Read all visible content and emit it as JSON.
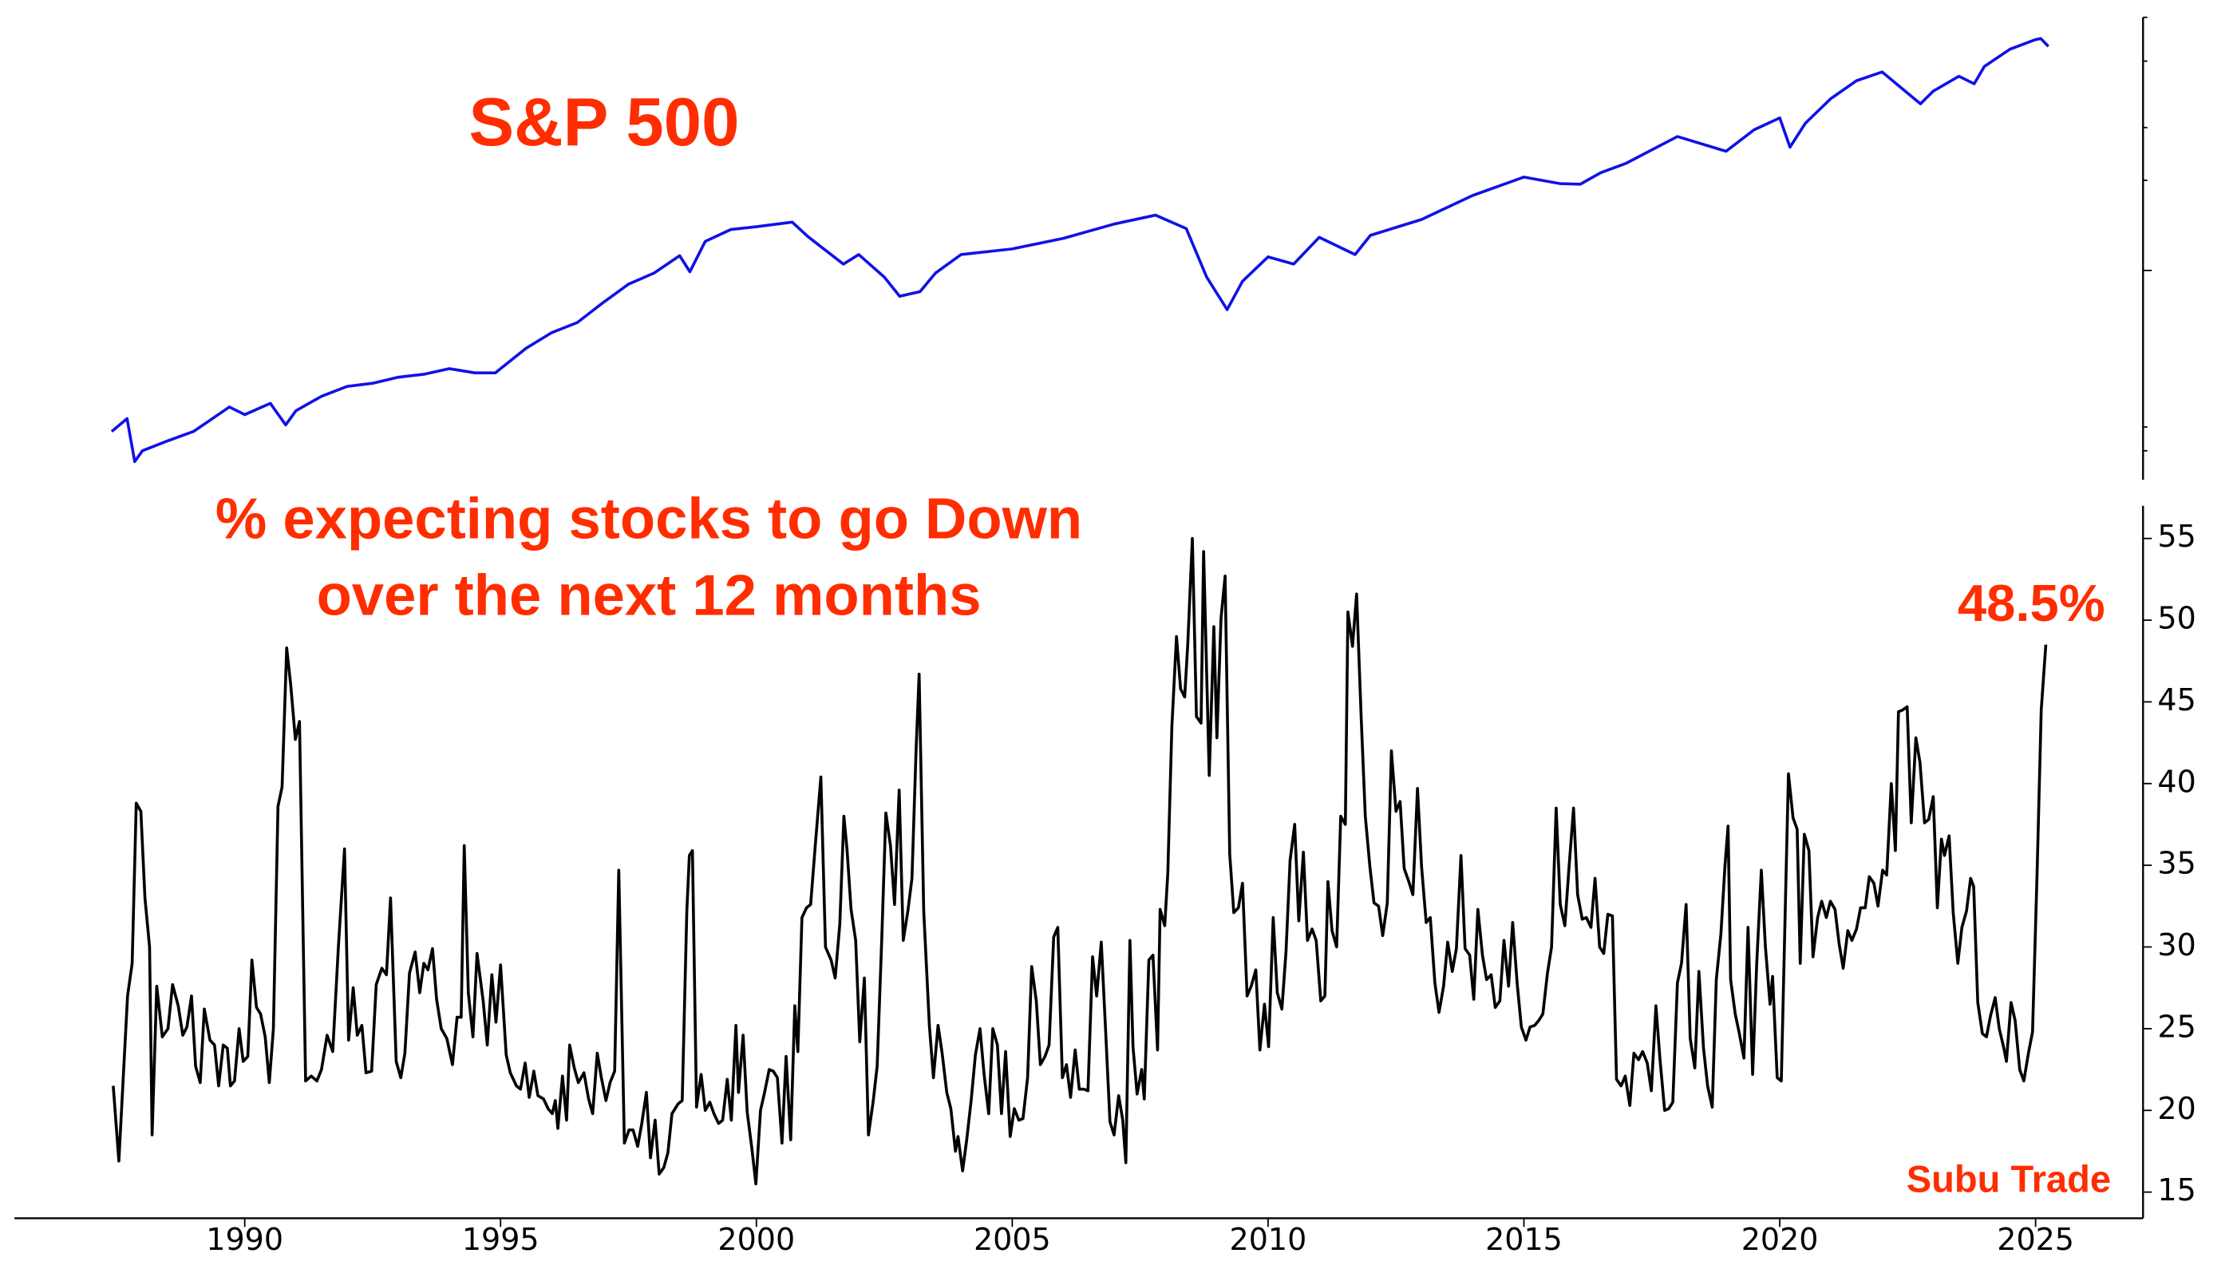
{
  "chart_data": [
    {
      "type": "line",
      "title": "S&P 500",
      "color": "#1111e6",
      "log_scale": true,
      "yticks_labeled": false,
      "xlim": [
        1985.5,
        2027.1
      ],
      "ylim": [
        200,
        7000
      ],
      "yticks": [
        250,
        300,
        1000,
        2000,
        3000,
        5000,
        7000
      ],
      "x": [
        1987.4,
        1987.7,
        1987.85,
        1988.0,
        1988.5,
        1989.0,
        1989.7,
        1990.0,
        1990.5,
        1990.8,
        1991.0,
        1991.5,
        1992.0,
        1992.5,
        1993.0,
        1993.5,
        1994.0,
        1994.5,
        1994.9,
        1995.0,
        1995.5,
        1996.0,
        1996.5,
        1997.0,
        1997.5,
        1998.0,
        1998.5,
        1998.7,
        1999.0,
        1999.5,
        2000.0,
        2000.7,
        2001.0,
        2001.7,
        2002.0,
        2002.5,
        2002.8,
        2003.2,
        2003.5,
        2004.0,
        2005.0,
        2006.0,
        2007.0,
        2007.8,
        2008.4,
        2008.8,
        2009.2,
        2009.5,
        2010.0,
        2010.5,
        2011.0,
        2011.7,
        2012.0,
        2013.0,
        2014.0,
        2015.0,
        2015.7,
        2016.1,
        2016.5,
        2017.0,
        2018.0,
        2018.95,
        2019.5,
        2020.0,
        2020.2,
        2020.5,
        2021.0,
        2021.5,
        2022.0,
        2022.75,
        2023.0,
        2023.5,
        2023.8,
        2024.0,
        2024.5,
        2025.0,
        2025.1,
        2025.25
      ],
      "values": [
        290,
        320,
        230,
        250,
        270,
        290,
        350,
        330,
        360,
        305,
        340,
        380,
        410,
        420,
        440,
        450,
        470,
        455,
        455,
        470,
        550,
        620,
        670,
        780,
        900,
        980,
        1120,
        990,
        1250,
        1370,
        1400,
        1450,
        1300,
        1050,
        1130,
        950,
        820,
        850,
        980,
        1130,
        1180,
        1280,
        1430,
        1530,
        1380,
        950,
        740,
        920,
        1110,
        1050,
        1290,
        1130,
        1310,
        1480,
        1780,
        2050,
        1950,
        1940,
        2120,
        2280,
        2800,
        2500,
        2950,
        3230,
        2580,
        3100,
        3750,
        4300,
        4600,
        3600,
        3970,
        4450,
        4200,
        4800,
        5480,
        5900,
        5950,
        5600
      ]
    },
    {
      "type": "line",
      "title": [
        "% expecting stocks to go Down",
        "over the next 12 months"
      ],
      "color": "#000000",
      "end_label": "48.5%",
      "xlim": [
        1985.5,
        2027.1
      ],
      "xticks": [
        1990,
        1995,
        2000,
        2005,
        2010,
        2015,
        2020,
        2025
      ],
      "ylim": [
        13.4,
        57
      ],
      "yticks": [
        15,
        20,
        25,
        30,
        35,
        40,
        45,
        50,
        55
      ],
      "x": [
        1987.43,
        1987.54,
        1987.71,
        1987.8,
        1987.88,
        1987.97,
        1988.05,
        1988.14,
        1988.19,
        1988.28,
        1988.39,
        1988.5,
        1988.59,
        1988.7,
        1988.79,
        1988.87,
        1988.96,
        1989.04,
        1989.13,
        1989.21,
        1989.32,
        1989.41,
        1989.49,
        1989.58,
        1989.66,
        1989.72,
        1989.8,
        1989.89,
        1989.97,
        1990.06,
        1990.14,
        1990.23,
        1990.31,
        1990.4,
        1990.48,
        1990.56,
        1990.65,
        1990.73,
        1990.82,
        1990.9,
        1990.99,
        1991.07,
        1991.19,
        1991.3,
        1991.41,
        1991.5,
        1991.61,
        1991.72,
        1991.83,
        1991.95,
        1992.03,
        1992.12,
        1992.2,
        1992.29,
        1992.37,
        1992.48,
        1992.57,
        1992.68,
        1992.77,
        1992.85,
        1992.96,
        1993.05,
        1993.13,
        1993.22,
        1993.33,
        1993.42,
        1993.5,
        1993.58,
        1993.67,
        1993.75,
        1993.84,
        1993.95,
        1994.06,
        1994.15,
        1994.23,
        1994.29,
        1994.37,
        1994.46,
        1994.54,
        1994.66,
        1994.74,
        1994.83,
        1994.91,
        1995.0,
        1995.11,
        1995.19,
        1995.31,
        1995.39,
        1995.48,
        1995.56,
        1995.65,
        1995.73,
        1995.84,
        1995.93,
        1996.01,
        1996.07,
        1996.12,
        1996.21,
        1996.29,
        1996.35,
        1996.44,
        1996.52,
        1996.63,
        1996.72,
        1996.8,
        1996.89,
        1996.97,
        1997.06,
        1997.14,
        1997.23,
        1997.31,
        1997.42,
        1997.51,
        1997.59,
        1997.68,
        1997.76,
        1997.85,
        1997.93,
        1998.02,
        1998.1,
        1998.19,
        1998.27,
        1998.35,
        1998.47,
        1998.55,
        1998.64,
        1998.69,
        1998.75,
        1998.83,
        1998.92,
        1999.0,
        1999.09,
        1999.17,
        1999.26,
        1999.34,
        1999.43,
        1999.51,
        1999.6,
        1999.65,
        1999.74,
        1999.82,
        1999.91,
        1999.99,
        2000.08,
        2000.16,
        2000.25,
        2000.33,
        2000.41,
        2000.5,
        2000.58,
        2000.67,
        2000.75,
        2000.81,
        2000.89,
        2000.98,
        2001.06,
        2001.15,
        2001.26,
        2001.35,
        2001.46,
        2001.54,
        2001.63,
        2001.71,
        2001.77,
        2001.85,
        2001.94,
        2002.02,
        2002.11,
        2002.19,
        2002.28,
        2002.36,
        2002.45,
        2002.53,
        2002.62,
        2002.7,
        2002.79,
        2002.87,
        2002.96,
        2003.04,
        2003.12,
        2003.18,
        2003.27,
        2003.38,
        2003.46,
        2003.55,
        2003.63,
        2003.72,
        2003.8,
        2003.89,
        2003.94,
        2004.03,
        2004.11,
        2004.2,
        2004.28,
        2004.37,
        2004.45,
        2004.54,
        2004.62,
        2004.71,
        2004.79,
        2004.87,
        2004.96,
        2005.04,
        2005.13,
        2005.21,
        2005.3,
        2005.38,
        2005.47,
        2005.55,
        2005.64,
        2005.72,
        2005.81,
        2005.89,
        2005.98,
        2006.06,
        2006.14,
        2006.23,
        2006.31,
        2006.4,
        2006.48,
        2006.57,
        2006.65,
        2006.74,
        2006.82,
        2006.91,
        2006.99,
        2007.08,
        2007.16,
        2007.22,
        2007.3,
        2007.36,
        2007.44,
        2007.53,
        2007.58,
        2007.67,
        2007.75,
        2007.84,
        2007.89,
        2007.98,
        2008.04,
        2008.12,
        2008.21,
        2008.29,
        2008.37,
        2008.43,
        2008.52,
        2008.6,
        2008.69,
        2008.74,
        2008.85,
        2008.94,
        2009.0,
        2009.08,
        2009.16,
        2009.25,
        2009.33,
        2009.42,
        2009.5,
        2009.59,
        2009.67,
        2009.76,
        2009.84,
        2009.93,
        2010.01,
        2010.1,
        2010.18,
        2010.27,
        2010.35,
        2010.43,
        2010.52,
        2010.6,
        2010.69,
        2010.77,
        2010.86,
        2010.94,
        2011.03,
        2011.11,
        2011.17,
        2011.25,
        2011.34,
        2011.42,
        2011.51,
        2011.56,
        2011.65,
        2011.73,
        2011.82,
        2011.9,
        2011.99,
        2012.07,
        2012.16,
        2012.24,
        2012.33,
        2012.41,
        2012.5,
        2012.58,
        2012.66,
        2012.75,
        2012.83,
        2012.92,
        2013.0,
        2013.09,
        2013.17,
        2013.26,
        2013.34,
        2013.43,
        2013.51,
        2013.6,
        2013.68,
        2013.77,
        2013.85,
        2013.94,
        2014.02,
        2014.1,
        2014.19,
        2014.27,
        2014.36,
        2014.44,
        2014.53,
        2014.61,
        2014.7,
        2014.78,
        2014.87,
        2014.95,
        2015.04,
        2015.12,
        2015.21,
        2015.29,
        2015.37,
        2015.46,
        2015.54,
        2015.63,
        2015.71,
        2015.8,
        2015.88,
        2015.97,
        2016.05,
        2016.14,
        2016.22,
        2016.31,
        2016.39,
        2016.48,
        2016.56,
        2016.64,
        2016.73,
        2016.81,
        2016.9,
        2016.98,
        2017.07,
        2017.15,
        2017.24,
        2017.32,
        2017.41,
        2017.49,
        2017.58,
        2017.66,
        2017.75,
        2017.83,
        2017.91,
        2018.0,
        2018.08,
        2018.17,
        2018.25,
        2018.34,
        2018.42,
        2018.51,
        2018.59,
        2018.68,
        2018.76,
        2018.85,
        2018.93,
        2018.99,
        2019.04,
        2019.13,
        2019.21,
        2019.3,
        2019.38,
        2019.47,
        2019.55,
        2019.64,
        2019.72,
        2019.81,
        2019.86,
        2019.95,
        2020.03,
        2020.12,
        2020.17,
        2020.26,
        2020.34,
        2020.4,
        2020.48,
        2020.57,
        2020.65,
        2020.74,
        2020.82,
        2020.91,
        2020.99,
        2021.08,
        2021.16,
        2021.24,
        2021.33,
        2021.41,
        2021.5,
        2021.58,
        2021.67,
        2021.75,
        2021.84,
        2021.92,
        2022.01,
        2022.09,
        2022.18,
        2022.26,
        2022.32,
        2022.4,
        2022.49,
        2022.57,
        2022.66,
        2022.74,
        2022.83,
        2022.91,
        2023.0,
        2023.08,
        2023.16,
        2023.22,
        2023.31,
        2023.39,
        2023.48,
        2023.56,
        2023.65,
        2023.73,
        2023.79,
        2023.87,
        2023.96,
        2024.04,
        2024.12,
        2024.21,
        2024.29,
        2024.38,
        2024.43,
        2024.52,
        2024.6,
        2024.69,
        2024.77,
        2024.86,
        2024.94,
        2025.03,
        2025.11,
        2025.2
      ],
      "values": [
        21.5,
        16.9,
        27,
        29,
        38.8,
        38.3,
        33,
        30,
        18.5,
        27.6,
        24.5,
        25,
        27.7,
        26.4,
        24.6,
        25.1,
        27,
        22.7,
        21.7,
        26.2,
        24.3,
        24,
        21.5,
        24,
        23.8,
        21.5,
        21.8,
        25,
        23,
        23.3,
        29.2,
        26.3,
        25.9,
        24.5,
        21.7,
        25,
        38.6,
        39.8,
        48.3,
        46,
        42.7,
        43.8,
        21.8,
        22.1,
        21.8,
        22.5,
        24.6,
        23.6,
        30,
        36,
        24.3,
        27.5,
        24.6,
        25.2,
        22.3,
        22.4,
        27.7,
        28.7,
        28.3,
        33,
        23,
        22,
        23.5,
        28.4,
        29.7,
        27.2,
        29,
        28.6,
        29.9,
        26.8,
        25,
        24.4,
        22.8,
        25.7,
        25.7,
        36.2,
        27.2,
        24.5,
        29.6,
        26.7,
        24,
        28.3,
        25.4,
        28.9,
        23.4,
        22.3,
        21.5,
        21.3,
        22.9,
        20.8,
        22.4,
        20.9,
        20.7,
        20.1,
        19.8,
        20.6,
        18.9,
        22.1,
        19.4,
        24,
        22.6,
        21.7,
        22.3,
        20.7,
        19.8,
        23.5,
        22,
        20.6,
        21.7,
        22.4,
        34.7,
        18,
        18.8,
        18.8,
        17.8,
        19.2,
        21.1,
        17.1,
        19.4,
        16.1,
        16.5,
        17.4,
        19.8,
        20.4,
        20.6,
        32.2,
        35.6,
        35.9,
        20.2,
        22.2,
        20,
        20.5,
        19.8,
        19.2,
        19.4,
        21.9,
        19.4,
        25.2,
        21.1,
        24.6,
        19.9,
        17.7,
        15.5,
        20,
        21.1,
        22.5,
        22.4,
        22,
        18,
        23.3,
        18.2,
        26.4,
        23.6,
        31.8,
        32.4,
        32.6,
        36.2,
        40.4,
        30,
        29.2,
        28.1,
        31.4,
        38,
        36,
        32.3,
        30.4,
        24.2,
        28.1,
        18.5,
        20.5,
        22.7,
        30.5,
        38.2,
        36.2,
        32.6,
        39.6,
        30.4,
        32.2,
        34.2,
        42,
        46.7,
        32.2,
        25.2,
        22,
        25.2,
        23.5,
        21.1,
        20.1,
        17.5,
        18.4,
        16.3,
        18.2,
        20.7,
        23.4,
        25,
        22.2,
        19.8,
        25,
        24,
        19.8,
        23.6,
        18.4,
        20.1,
        19.4,
        19.5,
        22,
        28.8,
        26.7,
        22.8,
        23.3,
        24,
        30.6,
        31.2,
        22,
        22.8,
        20.8,
        23.7,
        21.3,
        21.3,
        21.2,
        29.4,
        27,
        30.3,
        25.2,
        19.3,
        18.5,
        20.9,
        19.4,
        16.8,
        30.4,
        23.9,
        21,
        22.5,
        20.7,
        29.2,
        29.5,
        23.7,
        32.3,
        31.3,
        34.5,
        43.5,
        49,
        45.8,
        45.3,
        48.5,
        55,
        44.1,
        43.7,
        54.2,
        40.5,
        49.6,
        42.8,
        50.1,
        52.7,
        35.7,
        32.1,
        32.4,
        33.9,
        27,
        27.6,
        28.6,
        23.7,
        26.5,
        23.9,
        31.8,
        27.2,
        26.2,
        29.7,
        35.3,
        37.5,
        31.6,
        35.8,
        30.4,
        31.1,
        30.4,
        26.7,
        27,
        34,
        31,
        30,
        38,
        37.5,
        50.5,
        48.4,
        51.6,
        44,
        38,
        34.9,
        32.7,
        32.5,
        30.7,
        32.7,
        42,
        38.3,
        38.9,
        34.8,
        34,
        33.2,
        39.7,
        34.9,
        31.5,
        31.8,
        27.8,
        26,
        27.6,
        30.3,
        28.5,
        29.9,
        35.6,
        29.9,
        29.5,
        26.8,
        32.3,
        29.5,
        28,
        28.3,
        26.3,
        26.7,
        30.4,
        27.6,
        31.5,
        27.7,
        25.1,
        24.3,
        25.1,
        25.2,
        25.5,
        25.9,
        28.4,
        30,
        38.5,
        32.6,
        31.3,
        34.8,
        38.5,
        33.2,
        31.7,
        31.8,
        31.2,
        34.2,
        30,
        29.6,
        32,
        31.9,
        21.9,
        21.5,
        22.1,
        20.3,
        23.5,
        23.1,
        23.6,
        22.9,
        21.2,
        26.4,
        23.1,
        20,
        20.1,
        20.5,
        27.8,
        29,
        32.6,
        24.4,
        22.6,
        28.5,
        23.8,
        21.5,
        20.2,
        28,
        30.8,
        35,
        37.4,
        28,
        25.9,
        24.7,
        23.2,
        31.2,
        22.2,
        29,
        34.7,
        30,
        26.5,
        28.2,
        22,
        21.8,
        34,
        40.6,
        37.9,
        37.2,
        29,
        36.9,
        35.9,
        29.4,
        31.8,
        32.8,
        31.8,
        32.8,
        32.3,
        30.2,
        28.7,
        31,
        30.4,
        31.1,
        32.4,
        32.4,
        34.3,
        33.9,
        32.5,
        34.7,
        34.4,
        40,
        35.9,
        44.4,
        44.5,
        44.7,
        37.6,
        42.8,
        41.3,
        37.6,
        37.8,
        39.2,
        32.4,
        36.6,
        35.6,
        36.8,
        32.1,
        29,
        31.2,
        32.2,
        34.2,
        33.7,
        26.6,
        24.7,
        24.5,
        25.8,
        26.9,
        25,
        23.8,
        23,
        26.6,
        25.5,
        22.5,
        21.8,
        23.5,
        24.8,
        34.6,
        44.5,
        48.5
      ]
    }
  ],
  "source": "Subu Trade"
}
